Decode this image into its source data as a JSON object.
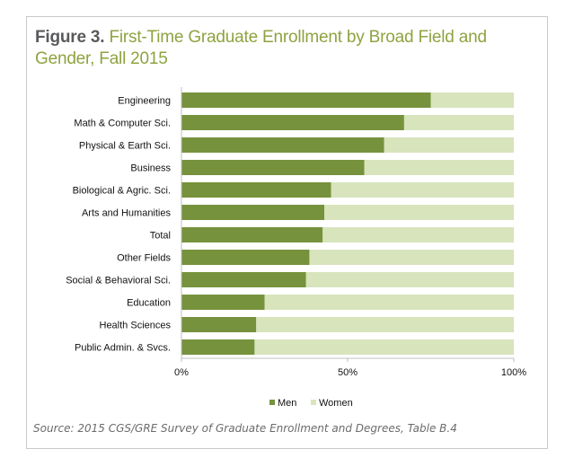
{
  "figure": {
    "label": "Figure 3.",
    "title": "First-Time Graduate Enrollment by Broad Field and Gender, Fall 2015",
    "source": "Source: 2015 CGS/GRE Survey of Graduate Enrollment and Degrees, Table B.4"
  },
  "colors": {
    "men": "#76923c",
    "women": "#d8e4bc",
    "axis": "#bfbfbf"
  },
  "chart_data": {
    "type": "bar",
    "orientation": "horizontal",
    "stacked": true,
    "categories": [
      "Engineering",
      "Math & Computer Sci.",
      "Physical & Earth Sci.",
      "Business",
      "Biological & Agric. Sci.",
      "Arts and Humanities",
      "Total",
      "Other Fields",
      "Social & Behavioral Sci.",
      "Education",
      "Health Sciences",
      "Public Admin. & Svcs."
    ],
    "series": [
      {
        "name": "Men",
        "values": [
          75,
          67,
          61,
          55,
          45,
          43,
          42.5,
          38.5,
          37.5,
          25,
          22.5,
          22
        ]
      },
      {
        "name": "Women",
        "values": [
          25,
          33,
          39,
          45,
          55,
          57,
          57.5,
          61.5,
          62.5,
          75,
          77.5,
          78
        ]
      }
    ],
    "xlim": [
      0,
      100
    ],
    "xticks": [
      "0%",
      "50%",
      "100%"
    ],
    "legend": "bottom",
    "grid": false
  }
}
